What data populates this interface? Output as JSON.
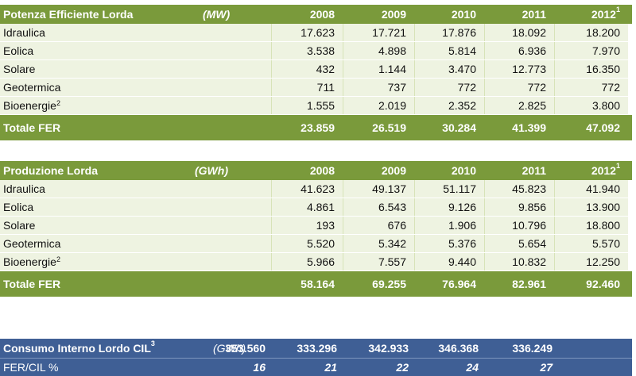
{
  "potenza": {
    "title": "Potenza Efficiente Lorda",
    "unit": "(MW)",
    "years": [
      "2008",
      "2009",
      "2010",
      "2011",
      "2012"
    ],
    "last_year_note": "1",
    "rows": [
      {
        "label": "Idraulica",
        "note": "",
        "values": [
          "17.623",
          "17.721",
          "17.876",
          "18.092",
          "18.200"
        ]
      },
      {
        "label": "Eolica",
        "note": "",
        "values": [
          "3.538",
          "4.898",
          "5.814",
          "6.936",
          "7.970"
        ]
      },
      {
        "label": "Solare",
        "note": "",
        "values": [
          "432",
          "1.144",
          "3.470",
          "12.773",
          "16.350"
        ]
      },
      {
        "label": "Geotermica",
        "note": "",
        "values": [
          "711",
          "737",
          "772",
          "772",
          "772"
        ]
      },
      {
        "label": "Bioenergie",
        "note": "2",
        "values": [
          "1.555",
          "2.019",
          "2.352",
          "2.825",
          "3.800"
        ]
      }
    ],
    "total": {
      "label": "Totale FER",
      "values": [
        "23.859",
        "26.519",
        "30.284",
        "41.399",
        "47.092"
      ]
    }
  },
  "produzione": {
    "title": "Produzione Lorda",
    "unit": "(GWh)",
    "years": [
      "2008",
      "2009",
      "2010",
      "2011",
      "2012"
    ],
    "last_year_note": "1",
    "rows": [
      {
        "label": "Idraulica",
        "note": "",
        "values": [
          "41.623",
          "49.137",
          "51.117",
          "45.823",
          "41.940"
        ]
      },
      {
        "label": "Eolica",
        "note": "",
        "values": [
          "4.861",
          "6.543",
          "9.126",
          "9.856",
          "13.900"
        ]
      },
      {
        "label": "Solare",
        "note": "",
        "values": [
          "193",
          "676",
          "1.906",
          "10.796",
          "18.800"
        ]
      },
      {
        "label": "Geotermica",
        "note": "",
        "values": [
          "5.520",
          "5.342",
          "5.376",
          "5.654",
          "5.570"
        ]
      },
      {
        "label": "Bioenergie",
        "note": "2",
        "values": [
          "5.966",
          "7.557",
          "9.440",
          "10.832",
          "12.250"
        ]
      }
    ],
    "total": {
      "label": "Totale FER",
      "values": [
        "58.164",
        "69.255",
        "76.964",
        "82.961",
        "92.460"
      ]
    }
  },
  "consumo": {
    "label": "Consumo Interno Lordo CIL",
    "note": "3",
    "unit": "(GWh)",
    "values": [
      "353.560",
      "333.296",
      "342.933",
      "346.368",
      "336.249"
    ],
    "ratio_label": "FER/CIL %",
    "ratio_values": [
      "16",
      "21",
      "22",
      "24",
      "27"
    ]
  }
}
